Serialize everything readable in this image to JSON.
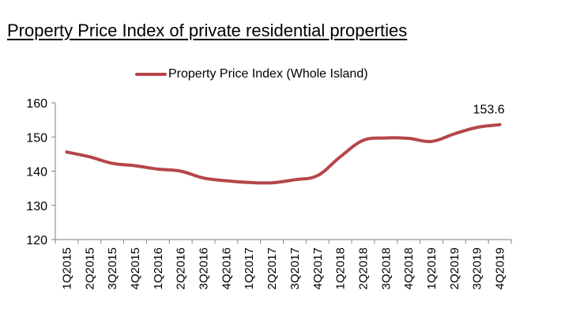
{
  "title": "Property Price Index of private residential properties",
  "chart_data": {
    "type": "line",
    "title": "Property Price Index of private residential properties",
    "xlabel": "",
    "ylabel": "",
    "ylim": [
      120,
      160
    ],
    "yticks": [
      "120",
      "130",
      "140",
      "150",
      "160"
    ],
    "grid": false,
    "legend_position": "top-center",
    "categories": [
      "1Q2015",
      "2Q2015",
      "3Q2015",
      "4Q2015",
      "1Q2016",
      "2Q2016",
      "3Q2016",
      "4Q2016",
      "1Q2017",
      "2Q2017",
      "3Q2017",
      "4Q2017",
      "1Q2018",
      "2Q2018",
      "3Q2018",
      "4Q2018",
      "1Q2019",
      "2Q2019",
      "3Q2019",
      "4Q2019"
    ],
    "series": [
      {
        "name": "Property Price Index (Whole Island)",
        "color": "#b5464a",
        "values": [
          145.6,
          144.2,
          142.3,
          141.6,
          140.6,
          140.0,
          138.0,
          137.2,
          136.7,
          136.6,
          137.5,
          138.7,
          144.2,
          149.0,
          149.7,
          149.6,
          148.7,
          150.9,
          152.8,
          153.6
        ]
      }
    ],
    "annotations": [
      {
        "category": "4Q2019",
        "text": "153.6"
      }
    ]
  }
}
